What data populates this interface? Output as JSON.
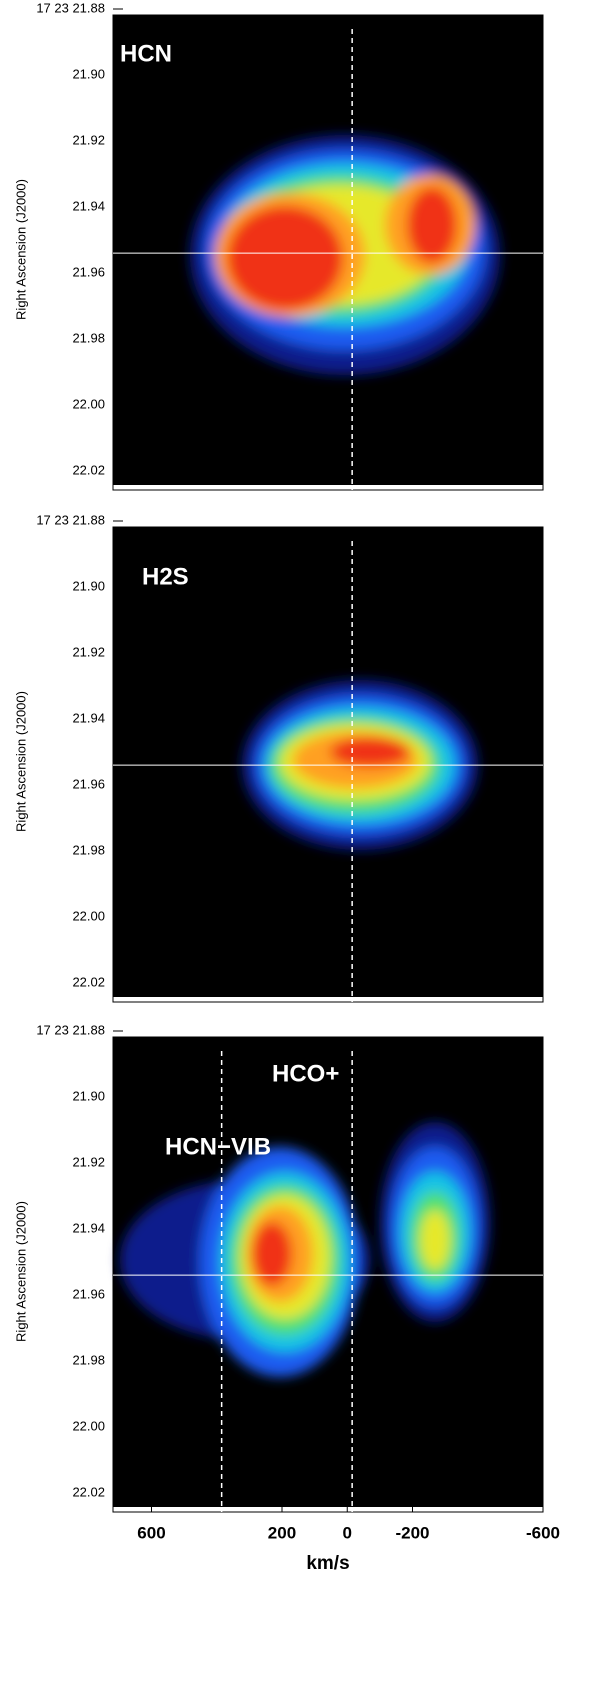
{
  "chart_data": [
    {
      "type": "heatmap",
      "label": "HCN",
      "ylabel": "Right Ascension (J2000)",
      "xlim": [
        718,
        -600
      ],
      "ylim": [
        21.88,
        22.0258
      ],
      "yticks": [
        {
          "value": 21.88,
          "label": "17 23 21.88"
        },
        {
          "value": 21.9,
          "label": "21.90"
        },
        21.92,
        21.94,
        21.96,
        21.98,
        {
          "value": 22.0,
          "label": "22.00"
        },
        22.02
      ],
      "vlines": [
        -15
      ],
      "hline": 21.954
    },
    {
      "type": "heatmap",
      "label": "H2S",
      "ylabel": "Right Ascension (J2000)",
      "xlim": [
        718,
        -600
      ],
      "ylim": [
        21.88,
        22.0258
      ],
      "yticks": [
        {
          "value": 21.88,
          "label": "17 23 21.88"
        },
        {
          "value": 21.9,
          "label": "21.90"
        },
        21.92,
        21.94,
        21.96,
        21.98,
        {
          "value": 22.0,
          "label": "22.00"
        },
        22.02
      ],
      "vlines": [
        -15
      ],
      "hline": 21.954
    },
    {
      "type": "heatmap",
      "label": "HCO+",
      "label2": "HCN−VIB",
      "ylabel": "Right Ascension (J2000)",
      "xlabel": "km/s",
      "xlim": [
        718,
        -600
      ],
      "ylim": [
        21.88,
        22.0258
      ],
      "xticks": [
        600,
        200,
        0,
        -200,
        -600
      ],
      "yticks": [
        {
          "value": 21.88,
          "label": "17 23 21.88"
        },
        {
          "value": 21.9,
          "label": "21.90"
        },
        21.92,
        21.94,
        21.96,
        21.98,
        {
          "value": 22.0,
          "label": "22.00"
        },
        22.02
      ],
      "vlines": [
        -15,
        385
      ],
      "hline": 21.954
    }
  ]
}
